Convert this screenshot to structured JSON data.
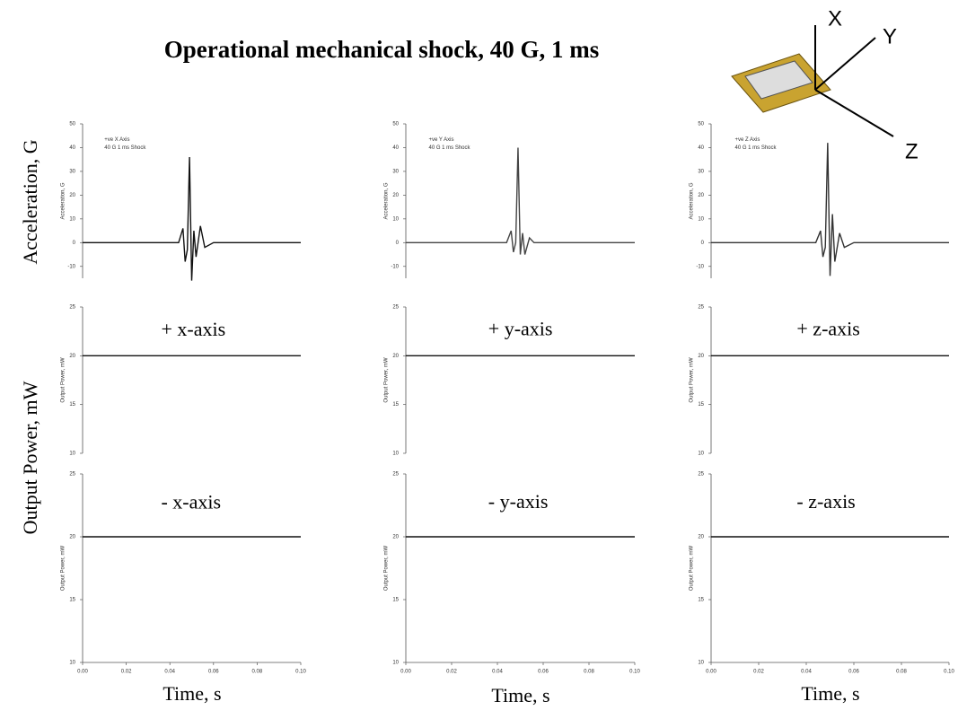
{
  "slide": {
    "title": "Operational mechanical shock, 40 G, 1 ms",
    "row_labels": [
      "Acceleration, G",
      "Output Power, mW"
    ],
    "column_labels": [
      "Time, s",
      "Time, s",
      "Time, s"
    ],
    "axes_diagram": [
      "X",
      "Y",
      "Z"
    ]
  },
  "chart_data": [
    {
      "type": "line",
      "ylabel": "Acceleration, G",
      "annotations": [
        "+ve X Axis",
        "40 G 1 ms Shock"
      ],
      "color": "#111",
      "x": [
        0,
        0.02,
        0.04,
        0.044,
        0.046,
        0.047,
        0.048,
        0.049,
        0.05,
        0.051,
        0.052,
        0.054,
        0.056,
        0.06,
        0.08,
        0.1
      ],
      "values": [
        0,
        0,
        0,
        0,
        6,
        -8,
        -3,
        36,
        -16,
        5,
        -6,
        7,
        -2,
        0,
        0,
        0
      ],
      "xlim": [
        0,
        0.1
      ],
      "ylim": [
        -15,
        50
      ],
      "yticks": [
        -10,
        0,
        10,
        20,
        30,
        40,
        50
      ]
    },
    {
      "type": "line",
      "ylabel": "Acceleration, G",
      "annotations": [
        "+ve Y Axis",
        "40 G 1 ms Shock"
      ],
      "color": "#444",
      "x": [
        0,
        0.02,
        0.04,
        0.044,
        0.046,
        0.047,
        0.048,
        0.049,
        0.05,
        0.051,
        0.052,
        0.054,
        0.056,
        0.06,
        0.08,
        0.1
      ],
      "values": [
        0,
        0,
        0,
        0,
        5,
        -4,
        0,
        40,
        -5,
        4,
        -5,
        2,
        0,
        0,
        0,
        0
      ],
      "xlim": [
        0,
        0.1
      ],
      "ylim": [
        -15,
        50
      ],
      "yticks": [
        -10,
        0,
        10,
        20,
        30,
        40,
        50
      ]
    },
    {
      "type": "line",
      "ylabel": "Acceleration, G",
      "annotations": [
        "+ve Z Axis",
        "40 G 1 ms Shock"
      ],
      "color": "#333",
      "x": [
        0,
        0.02,
        0.04,
        0.044,
        0.046,
        0.047,
        0.048,
        0.049,
        0.05,
        0.051,
        0.052,
        0.054,
        0.056,
        0.06,
        0.08,
        0.1
      ],
      "values": [
        0,
        0,
        0,
        0,
        5,
        -6,
        -2,
        42,
        -14,
        12,
        -8,
        4,
        -2,
        0,
        0,
        0
      ],
      "xlim": [
        0,
        0.1
      ],
      "ylim": [
        -15,
        50
      ],
      "yticks": [
        -10,
        0,
        10,
        20,
        30,
        40,
        50
      ]
    },
    {
      "type": "line",
      "ylabel": "Output Power, mW",
      "annotations": [
        "+ x-axis"
      ],
      "color": "#111",
      "x": [
        0,
        0.05,
        0.1
      ],
      "values": [
        20,
        20,
        20
      ],
      "xlim": [
        0,
        0.1
      ],
      "ylim": [
        10,
        25
      ],
      "yticks": [
        10,
        15,
        20,
        25
      ]
    },
    {
      "type": "line",
      "ylabel": "Output Power, mW",
      "annotations": [
        "+ y-axis"
      ],
      "color": "#111",
      "x": [
        0,
        0.05,
        0.1
      ],
      "values": [
        20,
        20,
        20
      ],
      "xlim": [
        0,
        0.1
      ],
      "ylim": [
        10,
        25
      ],
      "yticks": [
        10,
        15,
        20,
        25
      ]
    },
    {
      "type": "line",
      "ylabel": "Output Power, mW",
      "annotations": [
        "+ z-axis"
      ],
      "color": "#111",
      "x": [
        0,
        0.05,
        0.1
      ],
      "values": [
        20,
        20,
        20
      ],
      "xlim": [
        0,
        0.1
      ],
      "ylim": [
        10,
        25
      ],
      "yticks": [
        10,
        15,
        20,
        25
      ]
    },
    {
      "type": "line",
      "ylabel": "Output Power, mW",
      "annotations": [
        "- x-axis"
      ],
      "color": "#111",
      "x": [
        0,
        0.05,
        0.1
      ],
      "values": [
        20,
        20,
        20
      ],
      "xlim": [
        0,
        0.1
      ],
      "ylim": [
        10,
        25
      ],
      "yticks": [
        10,
        15,
        20,
        25
      ],
      "xticks": [
        {
          "value": 0,
          "label": "0.00"
        },
        {
          "value": 0.02,
          "label": "0.02"
        },
        {
          "value": 0.04,
          "label": "0.04"
        },
        {
          "value": 0.06,
          "label": "0.06"
        },
        {
          "value": 0.08,
          "label": "0.08"
        },
        {
          "value": 0.1,
          "label": "0.10"
        }
      ]
    },
    {
      "type": "line",
      "ylabel": "Output Power, mW",
      "annotations": [
        "- y-axis"
      ],
      "color": "#111",
      "x": [
        0,
        0.05,
        0.1
      ],
      "values": [
        20,
        20,
        20
      ],
      "xlim": [
        0,
        0.1
      ],
      "ylim": [
        10,
        25
      ],
      "yticks": [
        10,
        15,
        20,
        25
      ],
      "xticks": [
        {
          "value": 0,
          "label": "0.00"
        },
        {
          "value": 0.02,
          "label": "0.02"
        },
        {
          "value": 0.04,
          "label": "0.04"
        },
        {
          "value": 0.06,
          "label": "0.06"
        },
        {
          "value": 0.08,
          "label": "0.08"
        },
        {
          "value": 0.1,
          "label": "0.10"
        }
      ]
    },
    {
      "type": "line",
      "ylabel": "Output Power, mW",
      "annotations": [
        "- z-axis"
      ],
      "color": "#111",
      "x": [
        0,
        0.05,
        0.1
      ],
      "values": [
        20,
        20,
        20
      ],
      "xlim": [
        0,
        0.1
      ],
      "ylim": [
        10,
        25
      ],
      "yticks": [
        10,
        15,
        20,
        25
      ],
      "xticks": [
        {
          "value": 0,
          "label": "0.00"
        },
        {
          "value": 0.02,
          "label": "0.02"
        },
        {
          "value": 0.04,
          "label": "0.04"
        },
        {
          "value": 0.06,
          "label": "0.06"
        },
        {
          "value": 0.08,
          "label": "0.08"
        },
        {
          "value": 0.1,
          "label": "0.10"
        }
      ]
    }
  ]
}
